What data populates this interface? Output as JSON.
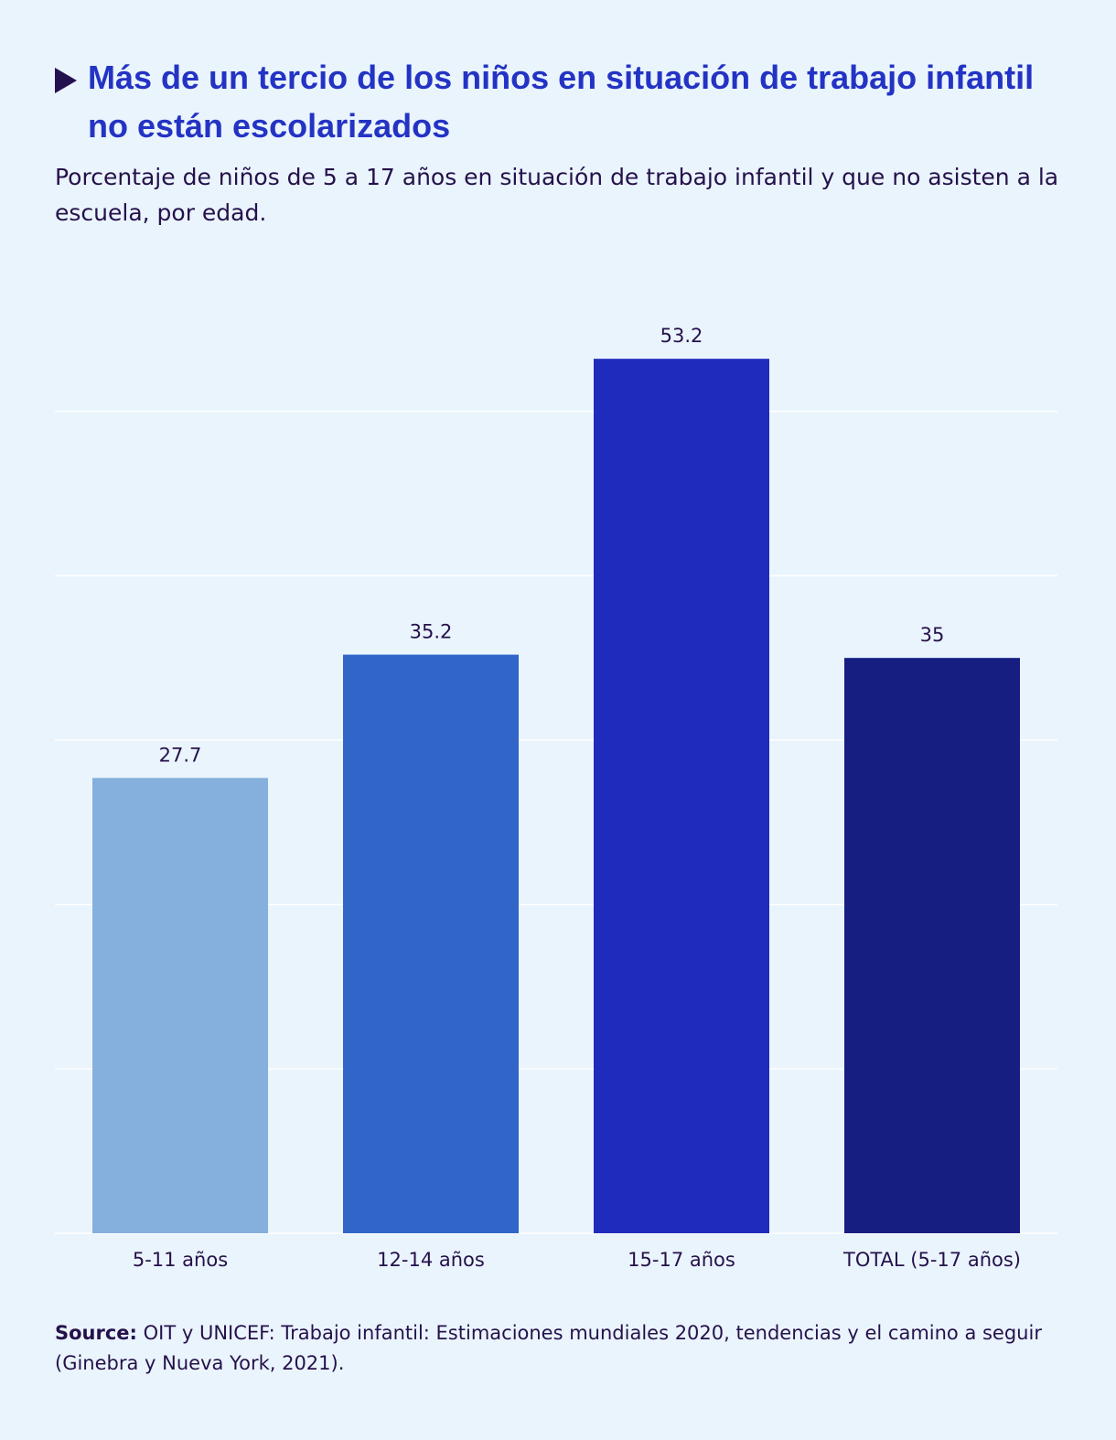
{
  "header": {
    "title": "Más de un tercio de los niños en situación de trabajo infantil no están escolarizados",
    "subtitle": "Porcentaje de niños de 5 a 17 años en situación de trabajo infantil y que no asisten a la escuela, por edad.",
    "arrow_icon": "play-triangle-icon"
  },
  "footer": {
    "source_label": "Source:",
    "source_text": "OIT y UNICEF: Trabajo infantil: Estimaciones mundiales 2020, tendencias y el camino a seguir (Ginebra y Nueva York, 2021)."
  },
  "colors": {
    "background": "#eaf4fd",
    "title": "#2333c4",
    "text": "#25114a",
    "grid": "#ffffff"
  },
  "chart_data": {
    "type": "bar",
    "categories": [
      "5-11 años",
      "12-14 años",
      "15-17 años",
      "TOTAL (5-17 años)"
    ],
    "values": [
      27.7,
      35.2,
      53.2,
      35
    ],
    "value_labels": [
      "27.7",
      "35.2",
      "53.2",
      "35"
    ],
    "bar_colors": [
      "#85afdc",
      "#3165c8",
      "#1f2bbd",
      "#161e82"
    ],
    "ylim": [
      0,
      60
    ],
    "ygrid": [
      0,
      10,
      20,
      30,
      40,
      50
    ],
    "grid": true,
    "y_tick_labels_shown": false,
    "legend": "none"
  }
}
